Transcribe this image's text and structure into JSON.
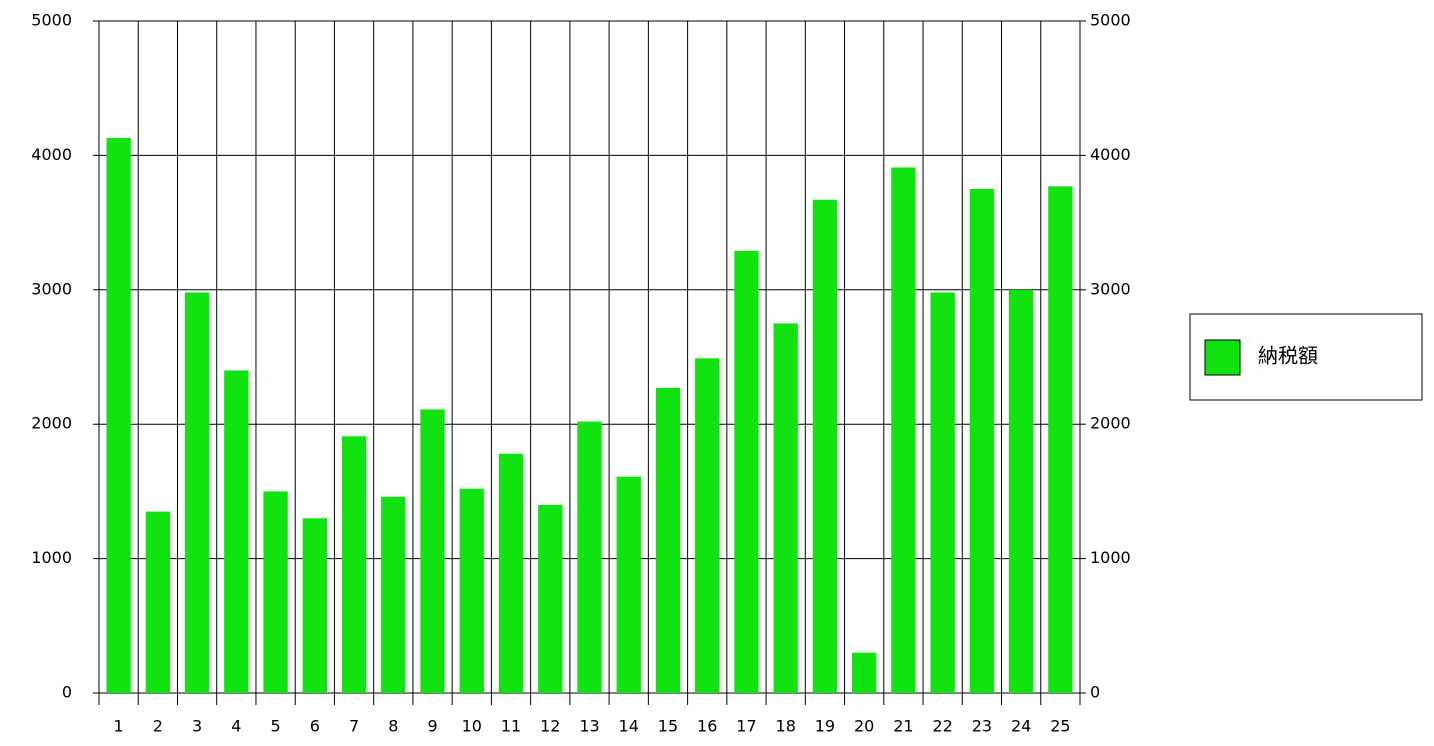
{
  "chart_data": {
    "type": "bar",
    "categories": [
      "1",
      "2",
      "3",
      "4",
      "5",
      "6",
      "7",
      "8",
      "9",
      "10",
      "11",
      "12",
      "13",
      "14",
      "15",
      "16",
      "17",
      "18",
      "19",
      "20",
      "21",
      "22",
      "23",
      "24",
      "25"
    ],
    "series": [
      {
        "name": "納税額",
        "color": "#11e311",
        "values": [
          4130,
          1350,
          2980,
          2400,
          1500,
          1300,
          1910,
          1460,
          2110,
          1520,
          1780,
          1400,
          2020,
          1610,
          2270,
          2490,
          3290,
          2750,
          3670,
          300,
          3910,
          2980,
          3750,
          3000,
          3770
        ]
      }
    ],
    "ylim": [
      0,
      5000
    ],
    "yticks": [
      0,
      1000,
      2000,
      3000,
      4000,
      5000
    ],
    "y2lim": [
      0,
      5000
    ],
    "y2ticks": [
      0,
      1000,
      2000,
      3000,
      4000,
      5000
    ],
    "grid": true,
    "legend": "right"
  }
}
